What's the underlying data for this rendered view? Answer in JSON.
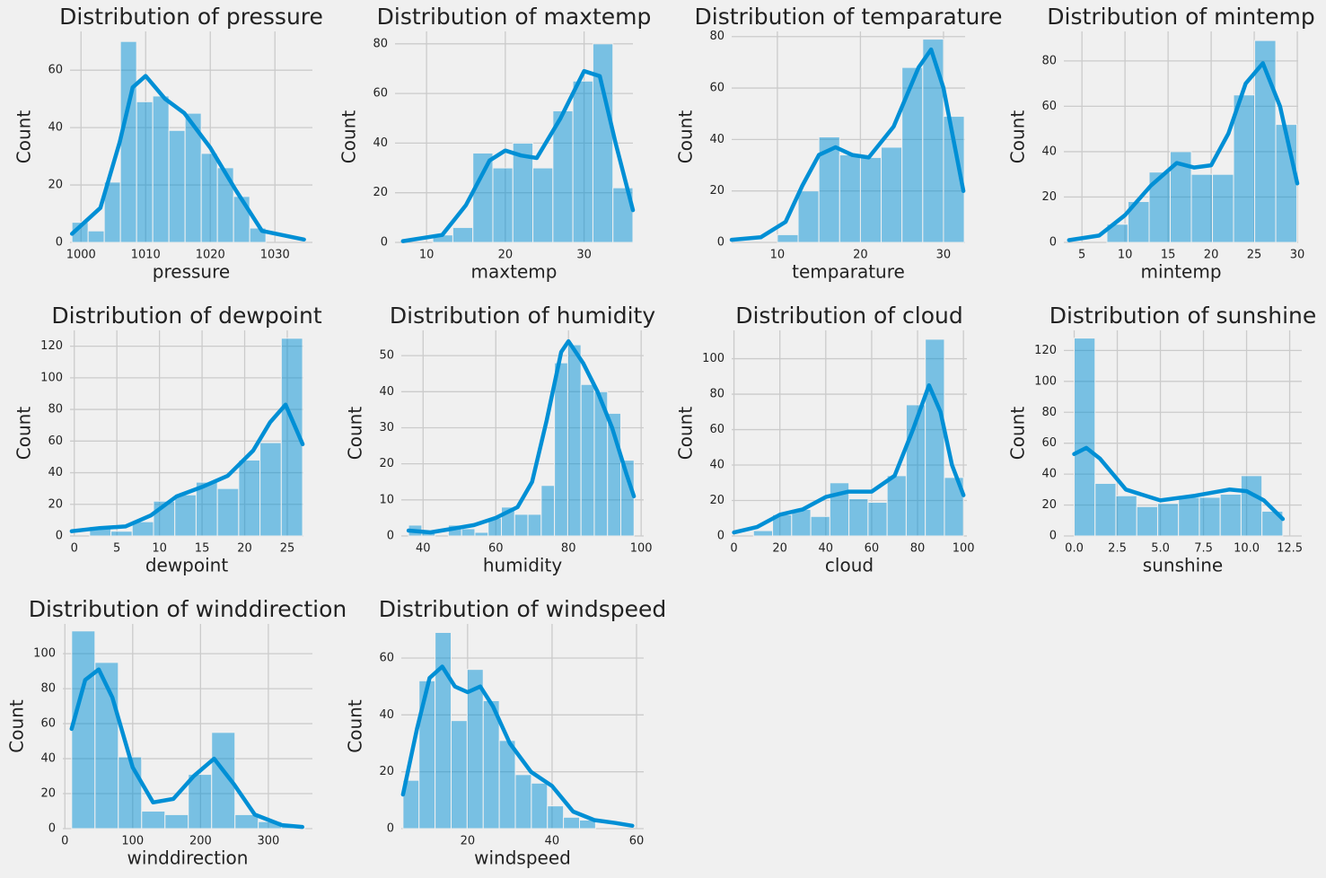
{
  "chart_data": [
    {
      "type": "histogram",
      "title": "Distribution of pressure",
      "xlabel": "pressure",
      "ylabel": "Count",
      "color": "#008fd5",
      "grid": true,
      "bins": [
        998.6,
        1001.1,
        1003.6,
        1006.1,
        1008.6,
        1011.1,
        1013.6,
        1016.1,
        1018.6,
        1021.1,
        1023.6,
        1026.1,
        1028.6
      ],
      "counts": [
        7,
        4,
        21,
        70,
        49,
        51,
        39,
        45,
        31,
        26,
        16,
        5
      ],
      "kde_x": [
        998.6,
        1003,
        1006,
        1008,
        1010,
        1013,
        1016,
        1020,
        1024,
        1028,
        1034.5
      ],
      "kde_y": [
        3,
        12,
        35,
        54,
        58,
        50,
        45,
        33,
        18,
        4,
        1
      ],
      "xlim": [
        998.3,
        1035.8
      ],
      "ylim": [
        0,
        73.5
      ],
      "xticks": [
        1000,
        1010,
        1020,
        1030
      ],
      "yticks": [
        0,
        20,
        40,
        60
      ]
    },
    {
      "type": "histogram",
      "title": "Distribution of maxtemp",
      "xlabel": "maxtemp",
      "ylabel": "Count",
      "color": "#008fd5",
      "grid": true,
      "bins": [
        10.8,
        13.34,
        15.88,
        18.42,
        20.96,
        23.5,
        26.04,
        28.58,
        31.12,
        33.66,
        36.2
      ],
      "counts": [
        3,
        6,
        36,
        30,
        40,
        30,
        53,
        65,
        80,
        22
      ],
      "kde_x": [
        7,
        12,
        15,
        18,
        20,
        22,
        24,
        27,
        30,
        32,
        34,
        36.2
      ],
      "kde_y": [
        0.5,
        3,
        15,
        33,
        37,
        35,
        34,
        50,
        69,
        67,
        40,
        13
      ],
      "xlim": [
        6,
        36.2
      ],
      "ylim": [
        0,
        85
      ],
      "xticks": [
        10,
        20,
        30
      ],
      "yticks": [
        0,
        20,
        40,
        60,
        80
      ]
    },
    {
      "type": "histogram",
      "title": "Distribution of temparature",
      "xlabel": "temparature",
      "ylabel": "Count",
      "color": "#008fd5",
      "grid": true,
      "bins": [
        10,
        12.5,
        15,
        17.5,
        20,
        22.5,
        25,
        27.5,
        30,
        32.5
      ],
      "counts": [
        3,
        20,
        41,
        34,
        33,
        37,
        68,
        79,
        49
      ],
      "kde_x": [
        4.5,
        8,
        11,
        13,
        15,
        17,
        19,
        21,
        24,
        27,
        28.5,
        30,
        32.4
      ],
      "kde_y": [
        1,
        2,
        8,
        22,
        34,
        37,
        34,
        33,
        45,
        68,
        75,
        60,
        20
      ],
      "xlim": [
        4.5,
        32.6
      ],
      "ylim": [
        0,
        82
      ],
      "xticks": [
        10,
        20,
        30
      ],
      "yticks": [
        0,
        20,
        40,
        60,
        80
      ]
    },
    {
      "type": "histogram",
      "title": "Distribution of mintemp",
      "xlabel": "mintemp",
      "ylabel": "Count",
      "color": "#008fd5",
      "grid": true,
      "bins": [
        7.9,
        10.35,
        12.8,
        15.25,
        17.7,
        20.15,
        22.6,
        25.05,
        27.5,
        29.95
      ],
      "counts": [
        8,
        18,
        31,
        40,
        30,
        30,
        65,
        89,
        52
      ],
      "kde_x": [
        3.5,
        7,
        10,
        13,
        16,
        18,
        20,
        22,
        24,
        26,
        28,
        30
      ],
      "kde_y": [
        1,
        3,
        12,
        25,
        35,
        33,
        34,
        48,
        70,
        79,
        60,
        26
      ],
      "xlim": [
        2.9,
        30.1
      ],
      "ylim": [
        0,
        93
      ],
      "xticks": [
        5,
        10,
        15,
        20,
        25,
        30
      ],
      "yticks": [
        0,
        20,
        40,
        60,
        80
      ]
    },
    {
      "type": "histogram",
      "title": "Distribution of dewpoint",
      "xlabel": "dewpoint",
      "ylabel": "Count",
      "color": "#008fd5",
      "grid": true,
      "bins": [
        1.8,
        4.3,
        6.8,
        9.3,
        11.8,
        14.3,
        16.8,
        19.3,
        21.8,
        24.3,
        26.8
      ],
      "counts": [
        6,
        3,
        9,
        22,
        26,
        34,
        30,
        48,
        59,
        125
      ],
      "kde_x": [
        -0.3,
        3,
        6,
        9,
        12,
        15,
        18,
        21,
        23,
        24.8,
        26.8
      ],
      "kde_y": [
        3,
        5,
        6,
        13,
        25,
        31,
        38,
        54,
        72,
        83,
        58
      ],
      "xlim": [
        -0.5,
        26.9
      ],
      "ylim": [
        0,
        130
      ],
      "xticks": [
        0,
        5,
        10,
        15,
        20,
        25
      ],
      "yticks": [
        0,
        20,
        40,
        60,
        80,
        100,
        120
      ]
    },
    {
      "type": "histogram",
      "title": "Distribution of humidity",
      "xlabel": "humidity",
      "ylabel": "Count",
      "color": "#008fd5",
      "grid": true,
      "bins": [
        36,
        39.65,
        43.3,
        46.95,
        50.6,
        54.25,
        57.9,
        61.55,
        65.2,
        68.85,
        72.5,
        76.15,
        79.8,
        83.45,
        87.1,
        90.75,
        94.4,
        98.05
      ],
      "counts": [
        3,
        1,
        0,
        3,
        2,
        1,
        5,
        8,
        6,
        6,
        14,
        48,
        53,
        42,
        40,
        34,
        21
      ],
      "kde_x": [
        36,
        42,
        48,
        54,
        60,
        66,
        70,
        74,
        78,
        80,
        84,
        88,
        92,
        96,
        98
      ],
      "kde_y": [
        1.5,
        1,
        2,
        3,
        5,
        8,
        15,
        32,
        51,
        54,
        48,
        40,
        30,
        17,
        11
      ],
      "xlim": [
        34,
        100.7
      ],
      "ylim": [
        0,
        57
      ],
      "xticks": [
        40,
        60,
        80,
        100
      ],
      "yticks": [
        0,
        10,
        20,
        30,
        40,
        50
      ]
    },
    {
      "type": "histogram",
      "title": "Distribution of cloud",
      "xlabel": "cloud",
      "ylabel": "Count",
      "color": "#008fd5",
      "grid": true,
      "bins": [
        8.5,
        16.82,
        25.14,
        33.46,
        41.78,
        50.1,
        58.42,
        66.74,
        75.06,
        83.38,
        91.7,
        100
      ],
      "counts": [
        3,
        12,
        15,
        11,
        30,
        21,
        19,
        34,
        74,
        111,
        33
      ],
      "kde_x": [
        0,
        10,
        20,
        30,
        40,
        50,
        60,
        70,
        78,
        85,
        90,
        95,
        100
      ],
      "kde_y": [
        2,
        5,
        12,
        15,
        22,
        25,
        25,
        34,
        60,
        85,
        70,
        40,
        23
      ],
      "xlim": [
        -1,
        101.5
      ],
      "ylim": [
        0,
        116
      ],
      "xticks": [
        0,
        20,
        40,
        60,
        80,
        100
      ],
      "yticks": [
        0,
        20,
        40,
        60,
        80,
        100
      ]
    },
    {
      "type": "histogram",
      "title": "Distribution of sunshine",
      "xlabel": "sunshine",
      "ylabel": "Count",
      "color": "#008fd5",
      "grid": true,
      "bins": [
        0,
        1.21,
        2.42,
        3.63,
        4.84,
        6.05,
        7.26,
        8.47,
        9.68,
        10.89,
        12.1
      ],
      "counts": [
        128,
        34,
        26,
        19,
        21,
        25,
        25,
        27,
        39,
        16
      ],
      "kde_x": [
        0,
        0.7,
        1.5,
        3,
        5,
        7,
        9,
        10,
        11,
        12.1
      ],
      "kde_y": [
        53,
        57,
        50,
        30,
        23,
        26,
        30,
        29,
        23,
        11
      ],
      "xlim": [
        -0.6,
        13.2
      ],
      "ylim": [
        0,
        133
      ],
      "xticks": [
        {
          "value": 0,
          "label": "0.0"
        },
        2.5,
        {
          "value": 5,
          "label": "5.0"
        },
        7.5,
        {
          "value": 10,
          "label": "10.0"
        },
        12.5
      ],
      "yticks": [
        0,
        20,
        40,
        60,
        80,
        100,
        120
      ]
    },
    {
      "type": "histogram",
      "title": "Distribution of winddirection",
      "xlabel": "winddirection",
      "ylabel": "Count",
      "color": "#008fd5",
      "grid": true,
      "bins": [
        10,
        44.4,
        78.8,
        113.2,
        147.6,
        182,
        216.4,
        250.8,
        285.2,
        319.6,
        354
      ],
      "counts": [
        113,
        95,
        41,
        10,
        8,
        31,
        55,
        8,
        4,
        1
      ],
      "kde_x": [
        10,
        30,
        50,
        70,
        100,
        130,
        160,
        190,
        220,
        250,
        280,
        320,
        350
      ],
      "kde_y": [
        57,
        85,
        91,
        75,
        35,
        15,
        17,
        30,
        40,
        25,
        8,
        2,
        1
      ],
      "xlim": [
        -3,
        365
      ],
      "ylim": [
        0,
        117
      ],
      "xticks": [
        0,
        100,
        200,
        300
      ],
      "yticks": [
        0,
        20,
        40,
        60,
        80,
        100
      ]
    },
    {
      "type": "histogram",
      "title": "Distribution of windspeed",
      "xlabel": "windspeed",
      "ylabel": "Count",
      "color": "#008fd5",
      "grid": true,
      "bins": [
        4.7,
        8.5,
        12.3,
        16.1,
        19.9,
        23.7,
        27.5,
        31.3,
        35.1,
        38.9,
        42.7,
        46.5,
        50.3
      ],
      "counts": [
        17,
        52,
        69,
        38,
        56,
        45,
        31,
        19,
        16,
        8,
        4,
        3
      ],
      "kde_x": [
        4.7,
        8,
        11,
        14,
        17,
        20,
        23,
        26,
        30,
        35,
        40,
        45,
        50,
        55,
        59
      ],
      "kde_y": [
        12,
        35,
        53,
        57,
        50,
        48,
        50,
        43,
        30,
        20,
        15,
        6,
        3,
        2,
        1
      ],
      "xlim": [
        4.3,
        61.7
      ],
      "ylim": [
        0,
        72
      ],
      "xticks": [
        20,
        40,
        60
      ],
      "yticks": [
        0,
        20,
        40,
        60
      ]
    }
  ]
}
